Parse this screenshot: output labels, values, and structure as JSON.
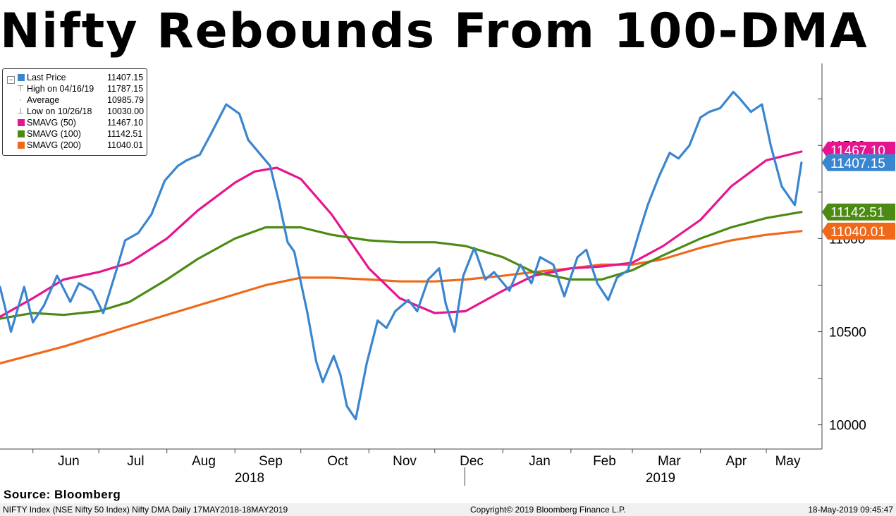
{
  "title": "Nifty Rebounds From 100-DMA",
  "legend": {
    "rows": [
      {
        "label": "Last Price",
        "value": "11407.15",
        "color": "#3a85d0",
        "kind": "square"
      },
      {
        "label": "High on 04/16/19",
        "value": "11787.15",
        "kind": "high"
      },
      {
        "label": "Average",
        "value": "10985.79",
        "kind": "avg"
      },
      {
        "label": "Low on 10/26/18",
        "value": "10030.00",
        "kind": "low"
      },
      {
        "label": "SMAVG (50)",
        "value": "11467.10",
        "color": "#e5158f",
        "kind": "square"
      },
      {
        "label": "SMAVG (100)",
        "value": "11142.51",
        "color": "#4c8a14",
        "kind": "square"
      },
      {
        "label": "SMAVG (200)",
        "value": "11040.01",
        "color": "#f0681a",
        "kind": "square"
      }
    ]
  },
  "source": "Source: Bloomberg",
  "footer": {
    "left": "NIFTY Index (NSE Nifty 50 Index) Nifty DMA  Daily 17MAY2018-18MAY2019",
    "middle": "Copyright© 2019 Bloomberg Finance L.P.",
    "right": "18-May-2019 09:45:47"
  },
  "chart_data": {
    "type": "line",
    "title": "Nifty Rebounds From 100-DMA",
    "x_axis": {
      "months": [
        "Jun",
        "Jul",
        "Aug",
        "Sep",
        "Oct",
        "Nov",
        "Dec",
        "Jan",
        "Feb",
        "Mar",
        "Apr",
        "May"
      ],
      "years": [
        "2018",
        "2019"
      ],
      "range": [
        "2018-05-17",
        "2019-05-18"
      ]
    },
    "y_axis": {
      "ticks": [
        10000,
        10500,
        11000,
        11500
      ],
      "range": [
        9870,
        11940
      ],
      "position": "right"
    },
    "grid": false,
    "legend_position": "top-left",
    "end_labels": [
      {
        "text": "11467.10",
        "value": 11467.1,
        "color": "#e5158f"
      },
      {
        "text": "11407.15",
        "value": 11407.15,
        "color": "#3a85d0"
      },
      {
        "text": "11142.51",
        "value": 11142.51,
        "color": "#4c8a14"
      },
      {
        "text": "11040.01",
        "value": 11040.01,
        "color": "#f0681a"
      }
    ],
    "series": [
      {
        "name": "Last Price",
        "color": "#3a85d0",
        "x": [
          "2018-05-17",
          "2018-05-22",
          "2018-05-28",
          "2018-06-01",
          "2018-06-06",
          "2018-06-12",
          "2018-06-18",
          "2018-06-22",
          "2018-06-28",
          "2018-07-03",
          "2018-07-09",
          "2018-07-13",
          "2018-07-19",
          "2018-07-25",
          "2018-07-31",
          "2018-08-06",
          "2018-08-10",
          "2018-08-16",
          "2018-08-21",
          "2018-08-28",
          "2018-09-03",
          "2018-09-07",
          "2018-09-12",
          "2018-09-17",
          "2018-09-21",
          "2018-09-25",
          "2018-09-28",
          "2018-10-04",
          "2018-10-08",
          "2018-10-11",
          "2018-10-16",
          "2018-10-19",
          "2018-10-22",
          "2018-10-26",
          "2018-10-31",
          "2018-11-05",
          "2018-11-09",
          "2018-11-13",
          "2018-11-19",
          "2018-11-23",
          "2018-11-28",
          "2018-12-03",
          "2018-12-06",
          "2018-12-10",
          "2018-12-14",
          "2018-12-19",
          "2018-12-24",
          "2018-12-28",
          "2019-01-04",
          "2019-01-09",
          "2019-01-14",
          "2019-01-18",
          "2019-01-24",
          "2019-01-29",
          "2019-02-04",
          "2019-02-08",
          "2019-02-13",
          "2019-02-18",
          "2019-02-22",
          "2019-02-27",
          "2019-03-04",
          "2019-03-08",
          "2019-03-13",
          "2019-03-18",
          "2019-03-22",
          "2019-03-27",
          "2019-04-01",
          "2019-04-05",
          "2019-04-10",
          "2019-04-16",
          "2019-04-19",
          "2019-04-24",
          "2019-04-29",
          "2019-05-03",
          "2019-05-08",
          "2019-05-14",
          "2019-05-17"
        ],
        "values": [
          10740,
          10500,
          10740,
          10550,
          10640,
          10800,
          10660,
          10760,
          10720,
          10600,
          10830,
          10990,
          11030,
          11130,
          11310,
          11390,
          11420,
          11450,
          11560,
          11720,
          11670,
          11530,
          11460,
          11390,
          11200,
          10980,
          10930,
          10600,
          10340,
          10230,
          10370,
          10270,
          10100,
          10030,
          10330,
          10560,
          10520,
          10610,
          10670,
          10610,
          10780,
          10840,
          10650,
          10500,
          10800,
          10950,
          10780,
          10820,
          10720,
          10860,
          10760,
          10900,
          10860,
          10690,
          10900,
          10940,
          10760,
          10670,
          10790,
          10830,
          11030,
          11180,
          11330,
          11460,
          11430,
          11500,
          11650,
          11680,
          11700,
          11787,
          11750,
          11680,
          11720,
          11500,
          11280,
          11180,
          11407
        ]
      },
      {
        "name": "SMAVG (50)",
        "color": "#e5158f",
        "x": [
          "2018-05-17",
          "2018-06-01",
          "2018-06-15",
          "2018-07-01",
          "2018-07-15",
          "2018-08-01",
          "2018-08-15",
          "2018-09-01",
          "2018-09-10",
          "2018-09-20",
          "2018-10-01",
          "2018-10-15",
          "2018-11-01",
          "2018-11-15",
          "2018-12-01",
          "2018-12-15",
          "2019-01-01",
          "2019-01-15",
          "2019-02-01",
          "2019-02-15",
          "2019-03-01",
          "2019-03-15",
          "2019-04-01",
          "2019-04-15",
          "2019-05-01",
          "2019-05-17"
        ],
        "values": [
          10580,
          10680,
          10780,
          10820,
          10870,
          11000,
          11150,
          11300,
          11360,
          11380,
          11320,
          11130,
          10840,
          10680,
          10600,
          10610,
          10720,
          10800,
          10840,
          10850,
          10870,
          10960,
          11100,
          11280,
          11420,
          11467.1
        ]
      },
      {
        "name": "SMAVG (100)",
        "color": "#4c8a14",
        "x": [
          "2018-05-17",
          "2018-06-01",
          "2018-06-15",
          "2018-07-01",
          "2018-07-15",
          "2018-08-01",
          "2018-08-15",
          "2018-09-01",
          "2018-09-15",
          "2018-10-01",
          "2018-10-15",
          "2018-11-01",
          "2018-11-15",
          "2018-12-01",
          "2018-12-15",
          "2019-01-01",
          "2019-01-15",
          "2019-02-01",
          "2019-02-15",
          "2019-03-01",
          "2019-03-15",
          "2019-04-01",
          "2019-04-15",
          "2019-05-01",
          "2019-05-17"
        ],
        "values": [
          10570,
          10600,
          10590,
          10610,
          10660,
          10780,
          10890,
          11000,
          11060,
          11060,
          11020,
          10990,
          10980,
          10980,
          10960,
          10900,
          10820,
          10780,
          10780,
          10830,
          10910,
          11000,
          11060,
          11110,
          11142.51
        ]
      },
      {
        "name": "SMAVG (200)",
        "color": "#f0681a",
        "x": [
          "2018-05-17",
          "2018-06-15",
          "2018-07-15",
          "2018-08-15",
          "2018-09-15",
          "2018-10-01",
          "2018-10-15",
          "2018-11-01",
          "2018-11-15",
          "2018-12-01",
          "2018-12-15",
          "2019-01-01",
          "2019-01-15",
          "2019-02-01",
          "2019-02-15",
          "2019-03-01",
          "2019-03-15",
          "2019-04-01",
          "2019-04-15",
          "2019-05-01",
          "2019-05-17"
        ],
        "values": [
          10330,
          10420,
          10530,
          10640,
          10750,
          10790,
          10790,
          10780,
          10770,
          10770,
          10780,
          10800,
          10820,
          10840,
          10860,
          10860,
          10890,
          10950,
          10990,
          11020,
          11040.01
        ]
      }
    ]
  }
}
